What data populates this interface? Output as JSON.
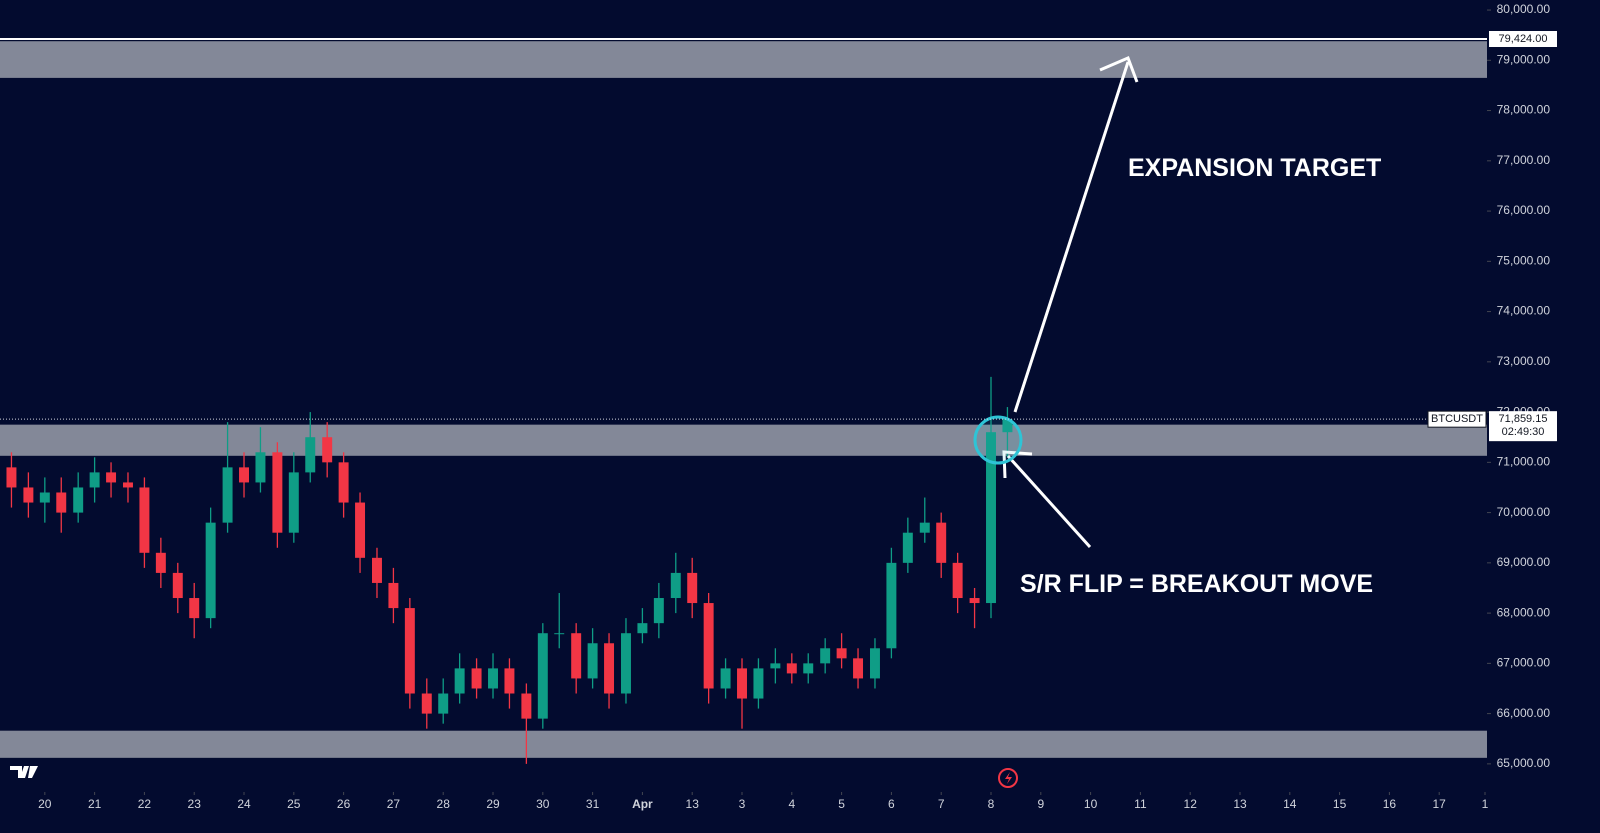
{
  "chart_data": {
    "type": "candlestick",
    "annotations": [
      "EXPANSION TARGET",
      "S/R FLIP = BREAKOUT MOVE"
    ],
    "symbol": "BTCUSDT",
    "countdown": "02:49:30",
    "last_price": {
      "value": 71859.15,
      "label": "71,859.15"
    },
    "line_label": {
      "value": 79424,
      "label": "79,424.00"
    },
    "zones": [
      {
        "from": 78650,
        "to": 79380
      },
      {
        "from": 71130,
        "to": 71750
      },
      {
        "from": 65120,
        "to": 65660
      }
    ],
    "up_color": "#0f9d86",
    "down_color": "#f23645",
    "zone_color": "#8a8f9e",
    "background": "#030b2f",
    "ylim": [
      64480,
      80200
    ],
    "xlim": [
      -0.9,
      28.96
    ],
    "yticks": [
      {
        "value": 65000,
        "label": "65,000.00"
      },
      {
        "value": 66000,
        "label": "66,000.00"
      },
      {
        "value": 67000,
        "label": "67,000.00"
      },
      {
        "value": 68000,
        "label": "68,000.00"
      },
      {
        "value": 69000,
        "label": "69,000.00"
      },
      {
        "value": 70000,
        "label": "70,000.00"
      },
      {
        "value": 71000,
        "label": "71,000.00"
      },
      {
        "value": 72000,
        "label": "72,000.00"
      },
      {
        "value": 73000,
        "label": "73,000.00"
      },
      {
        "value": 74000,
        "label": "74,000.00"
      },
      {
        "value": 75000,
        "label": "75,000.00"
      },
      {
        "value": 76000,
        "label": "76,000.00"
      },
      {
        "value": 77000,
        "label": "77,000.00"
      },
      {
        "value": 78000,
        "label": "78,000.00"
      },
      {
        "value": 79000,
        "label": "79,000.00"
      },
      {
        "value": 80000,
        "label": "80,000.00"
      }
    ],
    "xticks": [
      {
        "value": 0,
        "label": "20"
      },
      {
        "value": 1,
        "label": "21"
      },
      {
        "value": 2,
        "label": "22"
      },
      {
        "value": 3,
        "label": "23"
      },
      {
        "value": 4,
        "label": "24"
      },
      {
        "value": 5,
        "label": "25"
      },
      {
        "value": 6,
        "label": "26"
      },
      {
        "value": 7,
        "label": "27"
      },
      {
        "value": 8,
        "label": "28"
      },
      {
        "value": 9,
        "label": "29"
      },
      {
        "value": 10,
        "label": "30"
      },
      {
        "value": 11,
        "label": "31"
      },
      {
        "value": 12,
        "label": "Apr"
      },
      13,
      {
        "value": 14,
        "label": "3"
      },
      {
        "value": 15,
        "label": "4"
      },
      {
        "value": 16,
        "label": "5"
      },
      {
        "value": 17,
        "label": "6"
      },
      {
        "value": 18,
        "label": "7"
      },
      {
        "value": 19,
        "label": "8"
      },
      {
        "value": 20,
        "label": "9"
      },
      {
        "value": 21,
        "label": "10"
      },
      {
        "value": 22,
        "label": "11"
      },
      {
        "value": 23,
        "label": "12"
      },
      {
        "value": 24,
        "label": "13"
      },
      {
        "value": 25,
        "label": "14"
      },
      {
        "value": 26,
        "label": "15"
      },
      {
        "value": 27,
        "label": "16"
      },
      {
        "value": 28,
        "label": "17"
      },
      {
        "value": 28.92,
        "label": "1"
      }
    ],
    "x": [
      -0.67,
      -0.33,
      0,
      0.33,
      0.67,
      1,
      1.33,
      1.67,
      2,
      2.33,
      2.67,
      3,
      3.33,
      3.67,
      4,
      4.33,
      4.67,
      5,
      5.33,
      5.67,
      6,
      6.33,
      6.67,
      7,
      7.33,
      7.67,
      8,
      8.33,
      8.67,
      9,
      9.33,
      9.67,
      10,
      10.33,
      10.67,
      11,
      11.33,
      11.67,
      12,
      12.33,
      12.67,
      13,
      13.33,
      13.67,
      14,
      14.33,
      14.67,
      15,
      15.33,
      15.67,
      16,
      16.33,
      16.67,
      17,
      17.33,
      17.67,
      18,
      18.33,
      18.67,
      19,
      19.33
    ],
    "open": [
      70900,
      70500,
      70200,
      70400,
      70000,
      70500,
      70800,
      70600,
      70500,
      69200,
      68800,
      68300,
      67900,
      69800,
      70900,
      70600,
      71200,
      69600,
      70800,
      71500,
      71000,
      70200,
      69100,
      68600,
      68100,
      66400,
      66000,
      66400,
      66900,
      66500,
      66900,
      66400,
      65900,
      67600,
      67600,
      66700,
      67400,
      66400,
      67600,
      67800,
      68300,
      68800,
      68200,
      66500,
      66900,
      66300,
      66900,
      67000,
      66800,
      67000,
      67300,
      67100,
      66700,
      67300,
      69000,
      69600,
      69800,
      69000,
      68300,
      68200,
      71600
    ],
    "high": [
      71200,
      70800,
      70700,
      70700,
      70800,
      71100,
      71000,
      70800,
      70700,
      69500,
      69000,
      68600,
      70100,
      71800,
      71200,
      71700,
      71400,
      71200,
      72000,
      71800,
      71200,
      70400,
      69300,
      68900,
      68300,
      66700,
      66700,
      67200,
      67100,
      67200,
      67100,
      66600,
      67800,
      68400,
      67800,
      67700,
      67600,
      67900,
      68100,
      68600,
      69200,
      69100,
      68400,
      67100,
      67100,
      67100,
      67300,
      67200,
      67200,
      67500,
      67600,
      67300,
      67500,
      69300,
      69900,
      70300,
      70000,
      69200,
      68500,
      72700,
      72100
    ],
    "low": [
      70100,
      69900,
      69800,
      69600,
      69800,
      70200,
      70300,
      70200,
      68900,
      68500,
      68000,
      67500,
      67700,
      69600,
      70300,
      70400,
      69300,
      69400,
      70600,
      70700,
      69900,
      68800,
      68300,
      67800,
      66100,
      65700,
      65800,
      66200,
      66300,
      66300,
      66100,
      65000,
      65700,
      67300,
      66400,
      66500,
      66100,
      66200,
      67400,
      67500,
      68000,
      67900,
      66200,
      66300,
      65700,
      66100,
      66600,
      66600,
      66600,
      66800,
      66900,
      66500,
      66500,
      67100,
      68800,
      69400,
      68700,
      68000,
      67700,
      67900,
      71100
    ],
    "close": [
      70500,
      70200,
      70400,
      70000,
      70500,
      70800,
      70600,
      70500,
      69200,
      68800,
      68300,
      67900,
      69800,
      70900,
      70600,
      71200,
      69600,
      70800,
      71500,
      71000,
      70200,
      69100,
      68600,
      68100,
      66400,
      66000,
      66400,
      66900,
      66500,
      66900,
      66400,
      65900,
      67600,
      67600,
      66700,
      67400,
      66400,
      67600,
      67800,
      68300,
      68800,
      68200,
      66500,
      66900,
      66300,
      66900,
      67000,
      66800,
      67000,
      67300,
      67100,
      66700,
      67300,
      69000,
      69600,
      69800,
      69000,
      68300,
      68200,
      71600,
      71859.15
    ]
  }
}
